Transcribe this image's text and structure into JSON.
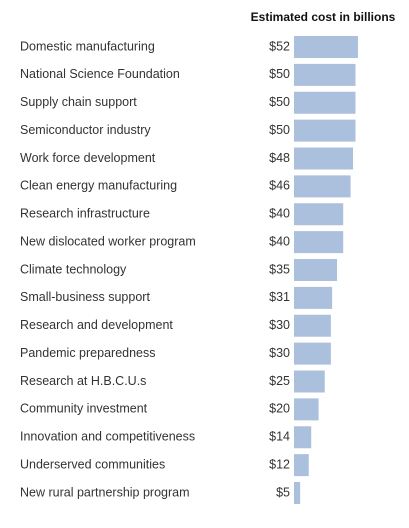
{
  "chart_data": {
    "type": "bar",
    "orientation": "horizontal",
    "title": "Estimated cost in billions",
    "categories": [
      "Domestic manufacturing",
      "National Science Foundation",
      "Supply chain support",
      "Semiconductor industry",
      "Work force development",
      "Clean energy manufacturing",
      "Research infrastructure",
      "New dislocated worker program",
      "Climate technology",
      "Small-business support",
      "Research and development",
      "Pandemic preparedness",
      "Research at H.B.C.U.s",
      "Community investment",
      "Innovation and competitiveness",
      "Underserved communities",
      "New rural partnership program"
    ],
    "values": [
      52,
      50,
      50,
      50,
      48,
      46,
      40,
      40,
      35,
      31,
      30,
      30,
      25,
      20,
      14,
      12,
      5
    ],
    "value_labels": [
      "$52",
      "$50",
      "$50",
      "$50",
      "$48",
      "$46",
      "$40",
      "$40",
      "$35",
      "$31",
      "$30",
      "$30",
      "$25",
      "$20",
      "$14",
      "$12",
      "$5"
    ],
    "color": "#abc0dd"
  }
}
